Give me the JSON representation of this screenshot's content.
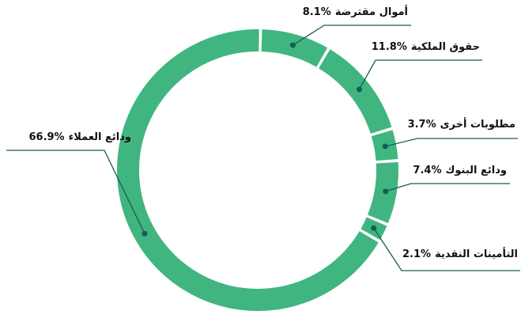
{
  "chart_data": {
    "type": "donut",
    "categories": [
      "أموال مقترضة",
      "حقوق الملكية",
      "مطلوبات أخرى",
      "ودائع البنوك",
      "التأمينات النقدية",
      "ودائع العملاء"
    ],
    "values": [
      8.1,
      11.8,
      3.7,
      7.4,
      2.1,
      66.9
    ],
    "value_labels": [
      "8.1%",
      "11.8%",
      "3.7%",
      "7.4%",
      "2.1%",
      "66.9%"
    ],
    "color": "#40b580",
    "line_color": "#155e58"
  }
}
